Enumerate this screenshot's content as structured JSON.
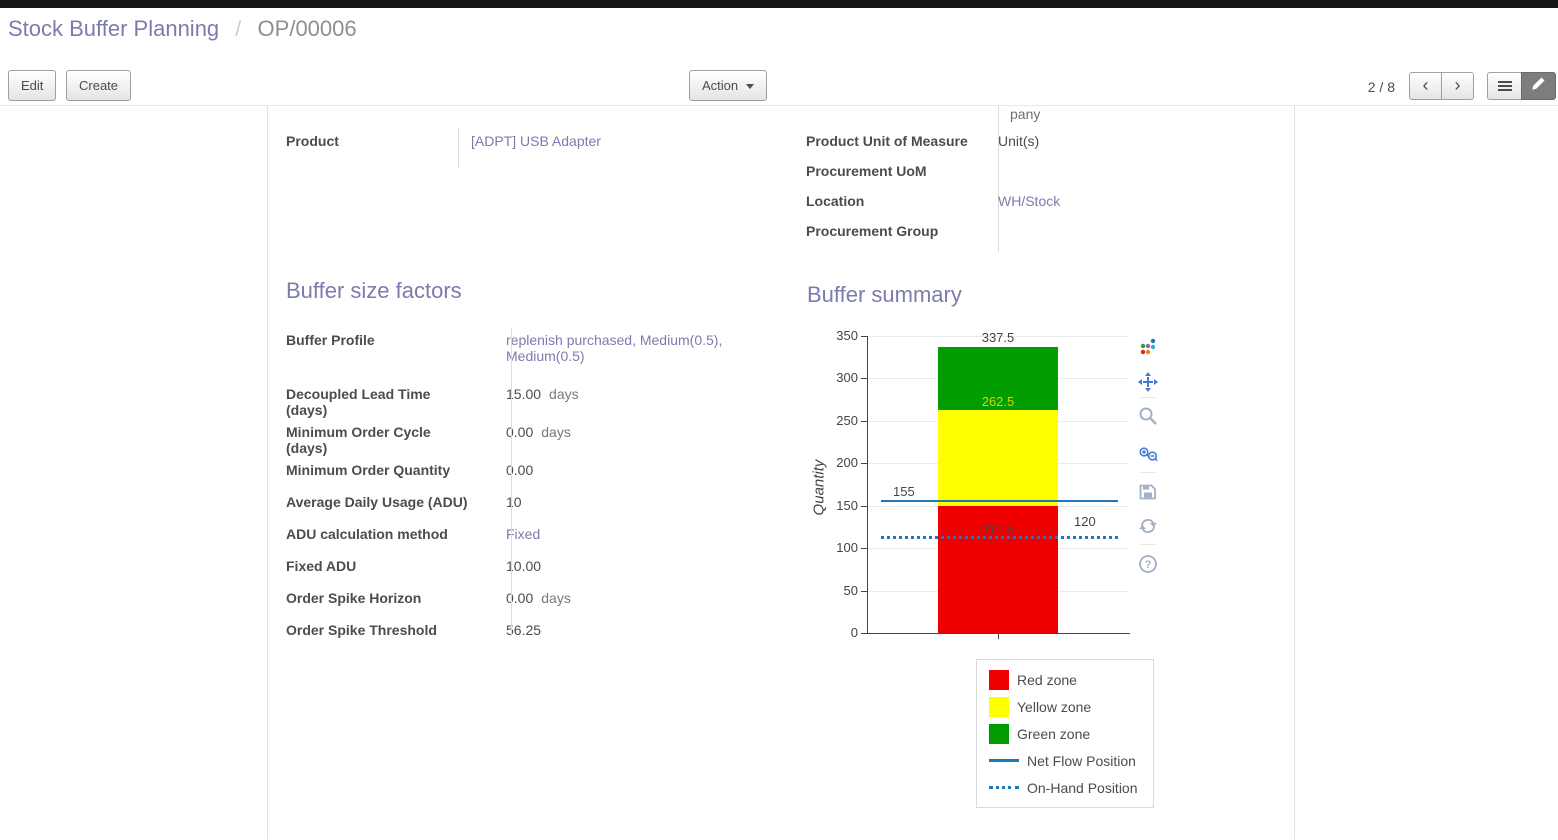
{
  "header": {
    "breadcrumb": {
      "parent": "Stock Buffer Planning",
      "separator": "/",
      "current": "OP/00006"
    },
    "actions": {
      "edit": "Edit",
      "create": "Create",
      "action": "Action"
    },
    "pager": {
      "counter": "2 / 8",
      "prev_icon": "‹",
      "next_icon": "›"
    }
  },
  "sheet": {
    "truncated_value": "pany",
    "left_fields": [
      {
        "label": "Product",
        "value": "[ADPT] USB Adapter"
      }
    ],
    "right_fields": [
      {
        "label": "Product Unit of Measure",
        "value": "Unit(s)"
      },
      {
        "label": "Procurement UoM",
        "value": ""
      },
      {
        "label": "Location",
        "value": "WH/Stock"
      },
      {
        "label": "Procurement Group",
        "value": ""
      }
    ],
    "buffer_factors": {
      "title": "Buffer size factors",
      "rows": [
        {
          "label": "Buffer Profile",
          "value": "replenish purchased, Medium(0.5), Medium(0.5)",
          "suffix": ""
        },
        {
          "label": "Decoupled Lead Time (days)",
          "value": "15.00",
          "suffix": "days"
        },
        {
          "label": "Minimum Order Cycle (days)",
          "value": "0.00",
          "suffix": "days"
        },
        {
          "label": "Minimum Order Quantity",
          "value": "0.00",
          "suffix": ""
        },
        {
          "label": "Average Daily Usage (ADU)",
          "value": "10",
          "suffix": ""
        },
        {
          "label": "ADU calculation method",
          "value": "Fixed",
          "suffix": ""
        },
        {
          "label": "Fixed ADU",
          "value": "10.00",
          "suffix": ""
        },
        {
          "label": "Order Spike Horizon",
          "value": "0.00",
          "suffix": "days"
        },
        {
          "label": "Order Spike Threshold",
          "value": "56.25",
          "suffix": ""
        }
      ]
    },
    "buffer_summary": {
      "title": "Buffer summary"
    }
  },
  "chart_data": {
    "type": "bar",
    "title": "",
    "xlabel": "",
    "ylabel": "Quantity",
    "ylim": [
      0,
      350
    ],
    "yticks": [
      0,
      50,
      100,
      150,
      200,
      250,
      300,
      350
    ],
    "grid": true,
    "zones": [
      {
        "name": "Red zone",
        "color": "#ee0000",
        "from": 0,
        "to": 150
      },
      {
        "name": "Yellow zone",
        "color": "#ffff00",
        "from": 150,
        "to": 262.5
      },
      {
        "name": "Green zone",
        "color": "#009c00",
        "from": 262.5,
        "to": 337.5
      }
    ],
    "lines": [
      {
        "name": "Net Flow Position",
        "value": 155,
        "style": "solid",
        "color": "#1f77b4"
      },
      {
        "name": "On-Hand Position",
        "value": 112.5,
        "style": "dotted",
        "color": "#1f77b4"
      }
    ],
    "annotations": [
      {
        "text": "337.5",
        "v": 337.5,
        "pos": "above-bar",
        "color": "#444444"
      },
      {
        "text": "262.5",
        "v": 262.5,
        "pos": "on-bar",
        "color": "#d8d800"
      },
      {
        "text": "155",
        "v": 155,
        "pos": "line-left",
        "color": "#444444"
      },
      {
        "text": "112.5",
        "v": 112.5,
        "pos": "line-center",
        "color": "#444444"
      },
      {
        "text": "120",
        "v": 120,
        "pos": "line-right",
        "color": "#444444"
      }
    ],
    "legend": {
      "position": "bottom-right",
      "items": [
        {
          "swatch": "box",
          "color": "#ee0000",
          "label": "Red zone"
        },
        {
          "swatch": "box",
          "color": "#ffff00",
          "label": "Yellow zone"
        },
        {
          "swatch": "box",
          "color": "#009c00",
          "label": "Green zone"
        },
        {
          "swatch": "line",
          "color": "#1f77b4",
          "label": "Net Flow Position"
        },
        {
          "swatch": "dots",
          "color": "#1f77b4",
          "label": "On-Hand Position"
        }
      ]
    },
    "modebar_icons": [
      "plotly-logo-icon",
      "pan-icon",
      "zoom-icon",
      "zoom-in-out-icon",
      "camera-icon",
      "reset-axes-icon",
      "help-icon"
    ]
  }
}
